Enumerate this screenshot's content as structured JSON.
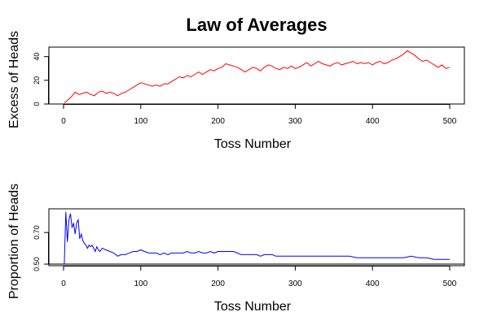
{
  "title": "Law of Averages",
  "chart_data": [
    {
      "type": "line",
      "xlabel": "Toss Number",
      "ylabel": "Excess of Heads",
      "xlim": [
        0,
        500
      ],
      "ylim": [
        0,
        48
      ],
      "xticks": [
        0,
        100,
        200,
        300,
        400,
        500
      ],
      "yticks": [
        0,
        20,
        40
      ],
      "baseline": 0,
      "color": "#ff0000",
      "series": [
        {
          "x": [
            1,
            5,
            10,
            15,
            20,
            25,
            30,
            35,
            40,
            45,
            50,
            55,
            60,
            65,
            70,
            75,
            80,
            85,
            90,
            95,
            100,
            105,
            110,
            115,
            120,
            125,
            130,
            135,
            140,
            145,
            150,
            155,
            160,
            165,
            170,
            175,
            180,
            185,
            190,
            195,
            200,
            205,
            210,
            215,
            220,
            225,
            230,
            235,
            240,
            245,
            250,
            255,
            260,
            265,
            270,
            275,
            280,
            285,
            290,
            295,
            300,
            305,
            310,
            315,
            320,
            325,
            330,
            335,
            340,
            345,
            350,
            355,
            360,
            365,
            370,
            375,
            380,
            385,
            390,
            395,
            400,
            405,
            410,
            415,
            420,
            425,
            430,
            435,
            440,
            445,
            450,
            455,
            460,
            465,
            470,
            475,
            480,
            485,
            490,
            495,
            500
          ],
          "y": [
            1,
            3,
            6,
            10,
            8,
            9,
            10,
            8,
            7,
            10,
            11,
            9,
            10,
            9,
            7,
            9,
            10,
            12,
            14,
            16,
            18,
            17,
            16,
            15,
            16,
            15,
            17,
            17,
            19,
            21,
            23,
            22,
            24,
            23,
            25,
            27,
            25,
            27,
            29,
            28,
            30,
            31,
            34,
            33,
            32,
            31,
            29,
            27,
            29,
            31,
            30,
            28,
            31,
            33,
            32,
            30,
            29,
            31,
            30,
            32,
            30,
            31,
            33,
            35,
            32,
            34,
            36,
            34,
            33,
            32,
            34,
            35,
            33,
            34,
            35,
            36,
            34,
            35,
            34,
            35,
            33,
            35,
            36,
            34,
            35,
            37,
            38,
            40,
            42,
            45,
            43,
            41,
            38,
            36,
            37,
            35,
            33,
            31,
            33,
            30,
            31
          ]
        }
      ]
    },
    {
      "type": "line",
      "xlabel": "Toss Number",
      "ylabel": "Proportion of Heads",
      "xlim": [
        0,
        500
      ],
      "ylim": [
        0.49,
        0.85
      ],
      "xticks": [
        0,
        100,
        200,
        300,
        400,
        500
      ],
      "yticks": [
        0.5,
        0.7
      ],
      "ytick_labels": [
        "0.50",
        "0.70"
      ],
      "baseline": 0.5,
      "color": "#0000ff",
      "series": [
        {
          "x": [
            1,
            3,
            5,
            7,
            9,
            11,
            13,
            15,
            17,
            19,
            21,
            23,
            25,
            27,
            29,
            31,
            33,
            35,
            37,
            39,
            41,
            43,
            45,
            47,
            50,
            55,
            60,
            65,
            70,
            75,
            80,
            85,
            90,
            95,
            100,
            105,
            110,
            115,
            120,
            125,
            130,
            135,
            140,
            145,
            150,
            155,
            160,
            165,
            170,
            175,
            180,
            185,
            190,
            195,
            200,
            205,
            210,
            215,
            220,
            225,
            230,
            235,
            240,
            245,
            250,
            255,
            260,
            265,
            270,
            275,
            280,
            285,
            290,
            295,
            300,
            310,
            320,
            330,
            340,
            350,
            360,
            370,
            380,
            390,
            400,
            410,
            420,
            430,
            440,
            450,
            460,
            470,
            480,
            490,
            500
          ],
          "y": [
            0.5,
            0.83,
            0.64,
            0.78,
            0.82,
            0.73,
            0.76,
            0.69,
            0.76,
            0.78,
            0.66,
            0.69,
            0.65,
            0.63,
            0.62,
            0.6,
            0.62,
            0.61,
            0.62,
            0.6,
            0.58,
            0.61,
            0.59,
            0.58,
            0.6,
            0.59,
            0.58,
            0.57,
            0.55,
            0.56,
            0.56,
            0.57,
            0.58,
            0.58,
            0.59,
            0.58,
            0.57,
            0.57,
            0.57,
            0.56,
            0.57,
            0.56,
            0.57,
            0.57,
            0.57,
            0.57,
            0.58,
            0.57,
            0.57,
            0.58,
            0.57,
            0.57,
            0.58,
            0.57,
            0.58,
            0.58,
            0.58,
            0.58,
            0.58,
            0.57,
            0.56,
            0.56,
            0.56,
            0.56,
            0.56,
            0.55,
            0.56,
            0.56,
            0.56,
            0.55,
            0.55,
            0.55,
            0.55,
            0.55,
            0.55,
            0.55,
            0.55,
            0.55,
            0.55,
            0.55,
            0.55,
            0.55,
            0.54,
            0.54,
            0.54,
            0.54,
            0.54,
            0.54,
            0.54,
            0.55,
            0.54,
            0.54,
            0.53,
            0.53,
            0.53
          ]
        }
      ]
    }
  ]
}
